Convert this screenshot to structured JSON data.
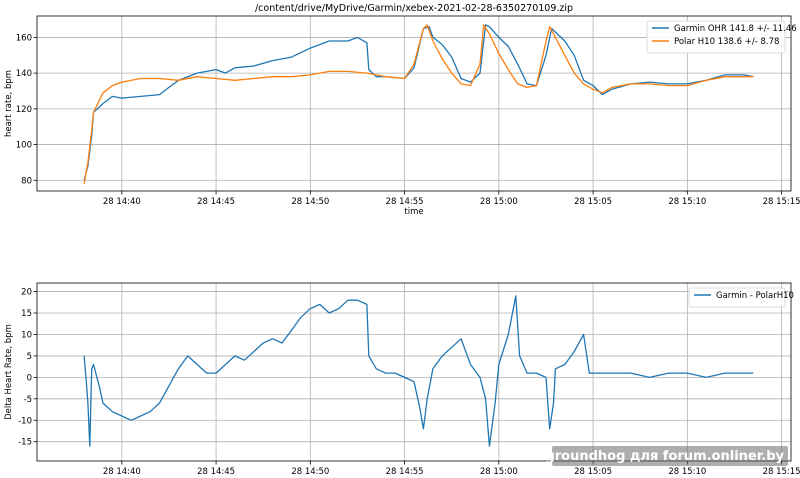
{
  "watermark": "groundhog для forum.onliner.by",
  "chart_data": [
    {
      "type": "line",
      "title": "/content/drive/MyDrive/Garmin/xebex-2021-02-28-6350270109.zip",
      "xlabel": "time",
      "ylabel": "heart rate, bpm",
      "x_unit": "minutes after 14:38",
      "xlim": [
        "28 14:35.5",
        "28 15:15.5"
      ],
      "ylim": [
        74,
        172
      ],
      "xticks": [
        "28 14:40",
        "28 14:45",
        "28 14:50",
        "28 14:55",
        "28 15:00",
        "28 15:05",
        "28 15:10",
        "28 15:15"
      ],
      "yticks": [
        80,
        100,
        120,
        140,
        160
      ],
      "grid": true,
      "legend_position": "top-right",
      "series": [
        {
          "name": "Garmin OHR 141.8 +/- 11.46",
          "color": "#1f77b4",
          "points": [
            [
              "28 14:38",
              80
            ],
            [
              "28 14:38:12",
              88
            ],
            [
              "28 14:38:24",
              105
            ],
            [
              "28 14:38:30",
              118
            ],
            [
              "28 14:38:48",
              121
            ],
            [
              "28 14:39",
              123
            ],
            [
              "28 14:39:30",
              127
            ],
            [
              "28 14:40",
              126
            ],
            [
              "28 14:41",
              127
            ],
            [
              "28 14:42",
              128
            ],
            [
              "28 14:42:30",
              132
            ],
            [
              "28 14:43",
              136
            ],
            [
              "28 14:44",
              140
            ],
            [
              "28 14:45",
              142
            ],
            [
              "28 14:45:30",
              140
            ],
            [
              "28 14:46",
              143
            ],
            [
              "28 14:47",
              144
            ],
            [
              "28 14:48",
              147
            ],
            [
              "28 14:49",
              149
            ],
            [
              "28 14:50",
              154
            ],
            [
              "28 14:51",
              158
            ],
            [
              "28 14:52",
              158
            ],
            [
              "28 14:52:30",
              160
            ],
            [
              "28 14:53",
              157
            ],
            [
              "28 14:53:06",
              142
            ],
            [
              "28 14:53:30",
              138
            ],
            [
              "28 14:54",
              138
            ],
            [
              "28 14:55",
              137
            ],
            [
              "28 14:55:30",
              143
            ],
            [
              "28 14:56",
              165
            ],
            [
              "28 14:56:18",
              166
            ],
            [
              "28 14:56:30",
              160
            ],
            [
              "28 14:57",
              156
            ],
            [
              "28 14:57:30",
              149
            ],
            [
              "28 14:58",
              137
            ],
            [
              "28 14:58:30",
              135
            ],
            [
              "28 14:59",
              140
            ],
            [
              "28 14:59:18",
              167
            ],
            [
              "28 14:59:30",
              166
            ],
            [
              "28 15:00",
              160
            ],
            [
              "28 15:00:30",
              155
            ],
            [
              "28 15:01",
              145
            ],
            [
              "28 15:01:30",
              134
            ],
            [
              "28 15:02",
              133
            ],
            [
              "28 15:02:30",
              150
            ],
            [
              "28 15:02:48",
              165
            ],
            [
              "28 15:03",
              163
            ],
            [
              "28 15:03:30",
              158
            ],
            [
              "28 15:04",
              150
            ],
            [
              "28 15:04:30",
              136
            ],
            [
              "28 15:05",
              133
            ],
            [
              "28 15:05:30",
              128
            ],
            [
              "28 15:06",
              131
            ],
            [
              "28 15:07",
              134
            ],
            [
              "28 15:08",
              135
            ],
            [
              "28 15:09",
              134
            ],
            [
              "28 15:10",
              134
            ],
            [
              "28 15:11",
              136
            ],
            [
              "28 15:12",
              139
            ],
            [
              "28 15:13",
              139
            ],
            [
              "28 15:13:30",
              138
            ]
          ]
        },
        {
          "name": "Polar H10 138.6 +/- 8.78",
          "color": "#ff7f0e",
          "points": [
            [
              "28 14:38",
              78
            ],
            [
              "28 14:38:12",
              90
            ],
            [
              "28 14:38:24",
              108
            ],
            [
              "28 14:38:30",
              118
            ],
            [
              "28 14:39",
              129
            ],
            [
              "28 14:39:30",
              133
            ],
            [
              "28 14:40",
              135
            ],
            [
              "28 14:41",
              137
            ],
            [
              "28 14:42",
              137
            ],
            [
              "28 14:43",
              136
            ],
            [
              "28 14:44",
              138
            ],
            [
              "28 14:45",
              137
            ],
            [
              "28 14:46",
              136
            ],
            [
              "28 14:47",
              137
            ],
            [
              "28 14:48",
              138
            ],
            [
              "28 14:49",
              138
            ],
            [
              "28 14:50",
              139
            ],
            [
              "28 14:51",
              141
            ],
            [
              "28 14:52",
              141
            ],
            [
              "28 14:53",
              140
            ],
            [
              "28 14:54",
              138
            ],
            [
              "28 14:55",
              137
            ],
            [
              "28 14:55:30",
              145
            ],
            [
              "28 14:56",
              165
            ],
            [
              "28 14:56:12",
              167
            ],
            [
              "28 14:56:30",
              158
            ],
            [
              "28 14:57",
              148
            ],
            [
              "28 14:57:30",
              140
            ],
            [
              "28 14:58",
              134
            ],
            [
              "28 14:58:30",
              133
            ],
            [
              "28 14:59",
              145
            ],
            [
              "28 14:59:12",
              167
            ],
            [
              "28 14:59:30",
              162
            ],
            [
              "28 15:00",
              151
            ],
            [
              "28 15:00:30",
              142
            ],
            [
              "28 15:01",
              134
            ],
            [
              "28 15:01:30",
              132
            ],
            [
              "28 15:02",
              133
            ],
            [
              "28 15:02:30",
              158
            ],
            [
              "28 15:02:42",
              166
            ],
            [
              "28 15:03",
              160
            ],
            [
              "28 15:03:30",
              150
            ],
            [
              "28 15:04",
              140
            ],
            [
              "28 15:04:30",
              134
            ],
            [
              "28 15:05",
              131
            ],
            [
              "28 15:05:30",
              129
            ],
            [
              "28 15:06",
              132
            ],
            [
              "28 15:07",
              134
            ],
            [
              "28 15:08",
              134
            ],
            [
              "28 15:09",
              133
            ],
            [
              "28 15:10",
              133
            ],
            [
              "28 15:11",
              136
            ],
            [
              "28 15:12",
              138
            ],
            [
              "28 15:13",
              138
            ],
            [
              "28 15:13:30",
              138
            ]
          ]
        }
      ]
    },
    {
      "type": "line",
      "title": "",
      "xlabel": "",
      "ylabel": "Delta Heart Rate, bpm",
      "x_unit": "minutes after 14:38",
      "xlim": [
        "28 14:35.5",
        "28 15:15.5"
      ],
      "ylim": [
        -19.5,
        22
      ],
      "xticks": [
        "28 14:40",
        "28 14:45",
        "28 14:50",
        "28 14:55",
        "28 15:00",
        "28 15:05",
        "28 15:10",
        "28 15:15"
      ],
      "yticks": [
        -15,
        -10,
        -5,
        0,
        5,
        10,
        15,
        20
      ],
      "grid": true,
      "legend_position": "top-right",
      "series": [
        {
          "name": "Garmin - PolarH10",
          "color": "#1f77b4",
          "points": [
            [
              "28 14:38",
              5
            ],
            [
              "28 14:38:06",
              0
            ],
            [
              "28 14:38:12",
              -6
            ],
            [
              "28 14:38:18",
              -16
            ],
            [
              "28 14:38:24",
              2
            ],
            [
              "28 14:38:30",
              3
            ],
            [
              "28 14:38:48",
              -2
            ],
            [
              "28 14:39",
              -6
            ],
            [
              "28 14:39:30",
              -8
            ],
            [
              "28 14:40",
              -9
            ],
            [
              "28 14:40:30",
              -10
            ],
            [
              "28 14:41",
              -9
            ],
            [
              "28 14:41:30",
              -8
            ],
            [
              "28 14:42",
              -6
            ],
            [
              "28 14:42:30",
              -2
            ],
            [
              "28 14:43",
              2
            ],
            [
              "28 14:43:30",
              5
            ],
            [
              "28 14:44",
              3
            ],
            [
              "28 14:44:30",
              1
            ],
            [
              "28 14:45",
              1
            ],
            [
              "28 14:45:30",
              3
            ],
            [
              "28 14:46",
              5
            ],
            [
              "28 14:46:30",
              4
            ],
            [
              "28 14:47",
              6
            ],
            [
              "28 14:47:30",
              8
            ],
            [
              "28 14:48",
              9
            ],
            [
              "28 14:48:30",
              8
            ],
            [
              "28 14:49",
              11
            ],
            [
              "28 14:49:30",
              14
            ],
            [
              "28 14:50",
              16
            ],
            [
              "28 14:50:30",
              17
            ],
            [
              "28 14:51",
              15
            ],
            [
              "28 14:51:30",
              16
            ],
            [
              "28 14:52",
              18
            ],
            [
              "28 14:52:30",
              18
            ],
            [
              "28 14:53",
              17
            ],
            [
              "28 14:53:06",
              5
            ],
            [
              "28 14:53:30",
              2
            ],
            [
              "28 14:54",
              1
            ],
            [
              "28 14:54:30",
              1
            ],
            [
              "28 14:55",
              0
            ],
            [
              "28 14:55:30",
              -1
            ],
            [
              "28 14:55:48",
              -7
            ],
            [
              "28 14:56",
              -12
            ],
            [
              "28 14:56:12",
              -5
            ],
            [
              "28 14:56:30",
              2
            ],
            [
              "28 14:57",
              5
            ],
            [
              "28 14:57:30",
              7
            ],
            [
              "28 14:58",
              9
            ],
            [
              "28 14:58:30",
              3
            ],
            [
              "28 14:59",
              0
            ],
            [
              "28 14:59:18",
              -5
            ],
            [
              "28 14:59:30",
              -16
            ],
            [
              "28 14:59:48",
              -6
            ],
            [
              "28 15:00",
              3
            ],
            [
              "28 15:00:30",
              10
            ],
            [
              "28 15:00:54",
              19
            ],
            [
              "28 15:01:06",
              5
            ],
            [
              "28 15:01:30",
              1
            ],
            [
              "28 15:02",
              1
            ],
            [
              "28 15:02:30",
              0
            ],
            [
              "28 15:02:42",
              -12
            ],
            [
              "28 15:02:54",
              -6
            ],
            [
              "28 15:03",
              2
            ],
            [
              "28 15:03:30",
              3
            ],
            [
              "28 15:04",
              6
            ],
            [
              "28 15:04:30",
              10
            ],
            [
              "28 15:04:48",
              1
            ],
            [
              "28 15:05",
              1
            ],
            [
              "28 15:06",
              1
            ],
            [
              "28 15:07",
              1
            ],
            [
              "28 15:08",
              0
            ],
            [
              "28 15:09",
              1
            ],
            [
              "28 15:10",
              1
            ],
            [
              "28 15:11",
              0
            ],
            [
              "28 15:12",
              1
            ],
            [
              "28 15:13",
              1
            ],
            [
              "28 15:13:30",
              1
            ]
          ]
        }
      ]
    }
  ]
}
